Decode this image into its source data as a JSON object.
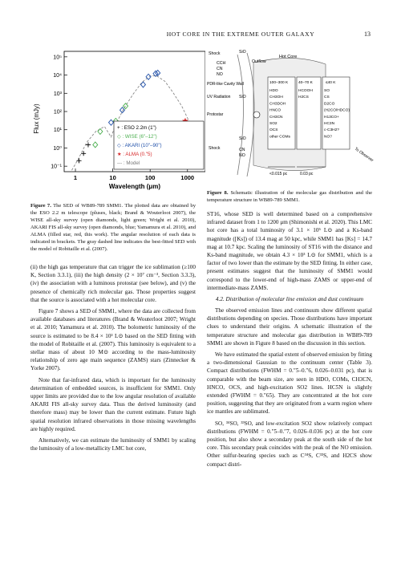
{
  "header": {
    "title": "HOT CORE IN THE EXTREME OUTER GALAXY",
    "page": "13"
  },
  "fig7": {
    "ylabel": "Flux (mJy)",
    "xlabel": "Wavelength (μm)",
    "yticks": [
      "10⁵",
      "10⁴",
      "10³",
      "10²",
      "10¹",
      "10⁰",
      "10⁻¹"
    ],
    "xticks": [
      "1",
      "10",
      "100",
      "1000"
    ],
    "legend": [
      "+ : ESO 2.2m (1\")",
      "◇ : WISE (6\"–12\")",
      "◇ : AKARI (10\"–90\")",
      "★ : ALMA (0.\"5)",
      "--- : Model"
    ],
    "caption_label": "Figure 7.",
    "caption": "The SED of WB89-789 SMM1. The plotted data are obtained by the ESO 2.2 m telescope (pluses, black; Brand & Wouterloot 2007), the WISE all-sky survey (open diamonds, light green; Wright et al. 2010), AKARI FIS all-sky survey (open diamonds, blue; Yamamura et al. 2010), and ALMA (filled star, red, this work). The angular resolution of each data is indicated in brackets. The gray dashed line indicates the best-fitted SED with the model of Robitaille et al. (2007)."
  },
  "chart_data": {
    "type": "scatter",
    "xlabel": "Wavelength (μm)",
    "ylabel": "Flux (mJy)",
    "xscale": "log",
    "yscale": "log",
    "xlim": [
      0.5,
      3000
    ],
    "ylim": [
      0.05,
      200000
    ],
    "series": [
      {
        "name": "ESO 2.2m (1\")",
        "marker": "plus",
        "color": "#000000",
        "x": [
          1.25,
          1.65,
          2.2
        ],
        "y": [
          0.2,
          0.5,
          1.5
        ]
      },
      {
        "name": "WISE (6\"–12\")",
        "marker": "open-diamond",
        "color": "#4caf50",
        "x": [
          3.4,
          4.6,
          12,
          22
        ],
        "y": [
          1.5,
          8,
          30,
          200
        ]
      },
      {
        "name": "AKARI (10\"–90\")",
        "marker": "open-diamond",
        "color": "#1f4fa8",
        "x": [
          9,
          18,
          65,
          90,
          140,
          160
        ],
        "y": [
          25,
          120,
          3000,
          8000,
          12000,
          13000
        ]
      },
      {
        "name": "ALMA (0.\"5)",
        "marker": "filled-star",
        "color": "#d62728",
        "x": [
          870,
          1200
        ],
        "y": [
          30,
          8
        ]
      },
      {
        "name": "Model",
        "marker": "dashed-line",
        "color": "#888888",
        "x": [
          0.8,
          1.2,
          2,
          3.5,
          6,
          9,
          12,
          20,
          35,
          60,
          100,
          150,
          250,
          400,
          700,
          1200
        ],
        "y": [
          0.06,
          0.25,
          2,
          8,
          15,
          4,
          20,
          150,
          900,
          4000,
          9000,
          9000,
          4500,
          1200,
          200,
          20
        ]
      }
    ]
  },
  "fig8": {
    "labels": {
      "shock_top": "Shock",
      "cch": "CCH",
      "cn": "CN",
      "no": "NO",
      "outflow": "Outflow",
      "sio_top": "SiO",
      "hotcore": "Hot Core",
      "pdr": "PDR-like Cavity Wall",
      "uv": "UV Radiation",
      "protostar": "Protostar",
      "sio_mid": "SiO",
      "sio_bot": "SiO",
      "cn_bot": "CN",
      "no_bot": "NO",
      "shock_bot": "Shock",
      "t1": "100–300 K",
      "t2": "40–70 K",
      "t3": "≤40 K",
      "mol1": [
        "HDO",
        "CH3OH",
        "CH3DOH",
        "HNCO",
        "CH3CN",
        "SO2",
        "OCS",
        "other COMs"
      ],
      "mol2": [
        "HCOOH",
        "H2CS"
      ],
      "mol3": [
        "SO",
        "CS",
        "D2CO",
        "(H2CO/HDCO)",
        "H13CO+",
        "HC3N",
        "c-C3H2?",
        "NO?"
      ],
      "scale1": "<0.015 pc",
      "scale2": "0.03 pc",
      "observer": "To Observer"
    },
    "caption_label": "Figure 8.",
    "caption": "Schematic illustration of the molecular gas distribution and the temperature structure in WB89-789 SMM1."
  },
  "left_text": {
    "p1": "(ii) the high gas temperature that can trigger the ice sublimation (≥100 K, Section 3.3.1), (iii) the high density (2 × 10⁷ cm⁻³, Section 3.3.3), (iv) the association with a luminous protostar (see below), and (v) the presence of chemically rich molecular gas. Those properties suggest that the source is associated with a hot molecular core.",
    "p2": "Figure 7 shows a SED of SMM1, where the data are collected from available databases and literatures (Brand & Wouterloot 2007; Wright et al. 2010; Yamamura et al. 2010). The bolometric luminosity of the source is estimated to be 8.4 × 10³ L⊙ based on the SED fitting with the model of Robitaille et al. (2007). This luminosity is equivalent to a stellar mass of about 10 M⊙ according to the mass-luminosity relationship of zero age main sequence (ZAMS) stars (Zinnecker & Yorke 2007).",
    "p3": "Note that far-infrared data, which is important for the luminosity determination of embedded sources, is insufficient for SMM1. Only upper limits are provided due to the low angular resolution of available AKARI FIS all-sky survey data. Thus the derived luminosity (and therefore mass) may be lower than the current estimate. Future high spatial resolution infrared observations in those missing wavelengths are highly required.",
    "p4": "Alternatively, we can estimate the luminosity of SMM1 by scaling the luminosity of a low-metallicity LMC hot core,"
  },
  "right_text": {
    "p1": "ST16, whose SED is well determined based on a comprehensive infrared dataset from 1 to 1200 μm (Shimonishi et al. 2020). This LMC hot core has a total luminosity of 3.1 × 10⁵ L⊙ and a Ks-band magnitude ([Ks]) of 13.4 mag at 50 kpc, while SMM1 has [Ks] = 14.7 mag at 10.7 kpc. Scaling the luminosity of ST16 with the distance and Ks-band magnitude, we obtain 4.3 × 10³ L⊙ for SMM1, which is a factor of two lower than the estimate by the SED fitting. In either case, present estimates suggest that the luminosity of SMM1 would correspond to the lower-end of high-mass ZAMS or upper-end of intermediate-mass ZAMS.",
    "section": "4.2. Distribution of molecular line emission and dust continuum",
    "p2": "The observed emission lines and continuum show different spatial distributions depending on species. Those distributions have important clues to understand their origins. A schematic illustration of the temperature structure and molecular gas distribution in WB89-789 SMM1 are shown in Figure 8 based on the discussion in this section.",
    "p3": "We have estimated the spatial extent of observed emission by fitting a two-dimensional Gaussian to the continuum center (Table 3). Compact distributions (FWHM = 0.″5–0.″6, 0.026–0.031 pc), that is comparable with the beam size, are seen in HDO, COMs, CH3CN, HNCO, OCS, and high-excitation SO2 lines. HC5N is slightly extended (FWHM = 0.″65). They are concentrated at the hot core position, suggesting that they are originated from a warm region where ice mantles are sublimated.",
    "p4": "SO, ³⁴SO, ³³SO, and low-excitation SO2 show relatively compact distributions (FWHM = 0.″5–0.″7, 0.026–0.036 pc) at the hot core position, but also show a secondary peak at the south side of the hot core. This secondary peak coincides with the peak of the NO emission. Other sulfur-bearing species such as C³⁴S, C³³S, and H2CS show compact distri-"
  }
}
